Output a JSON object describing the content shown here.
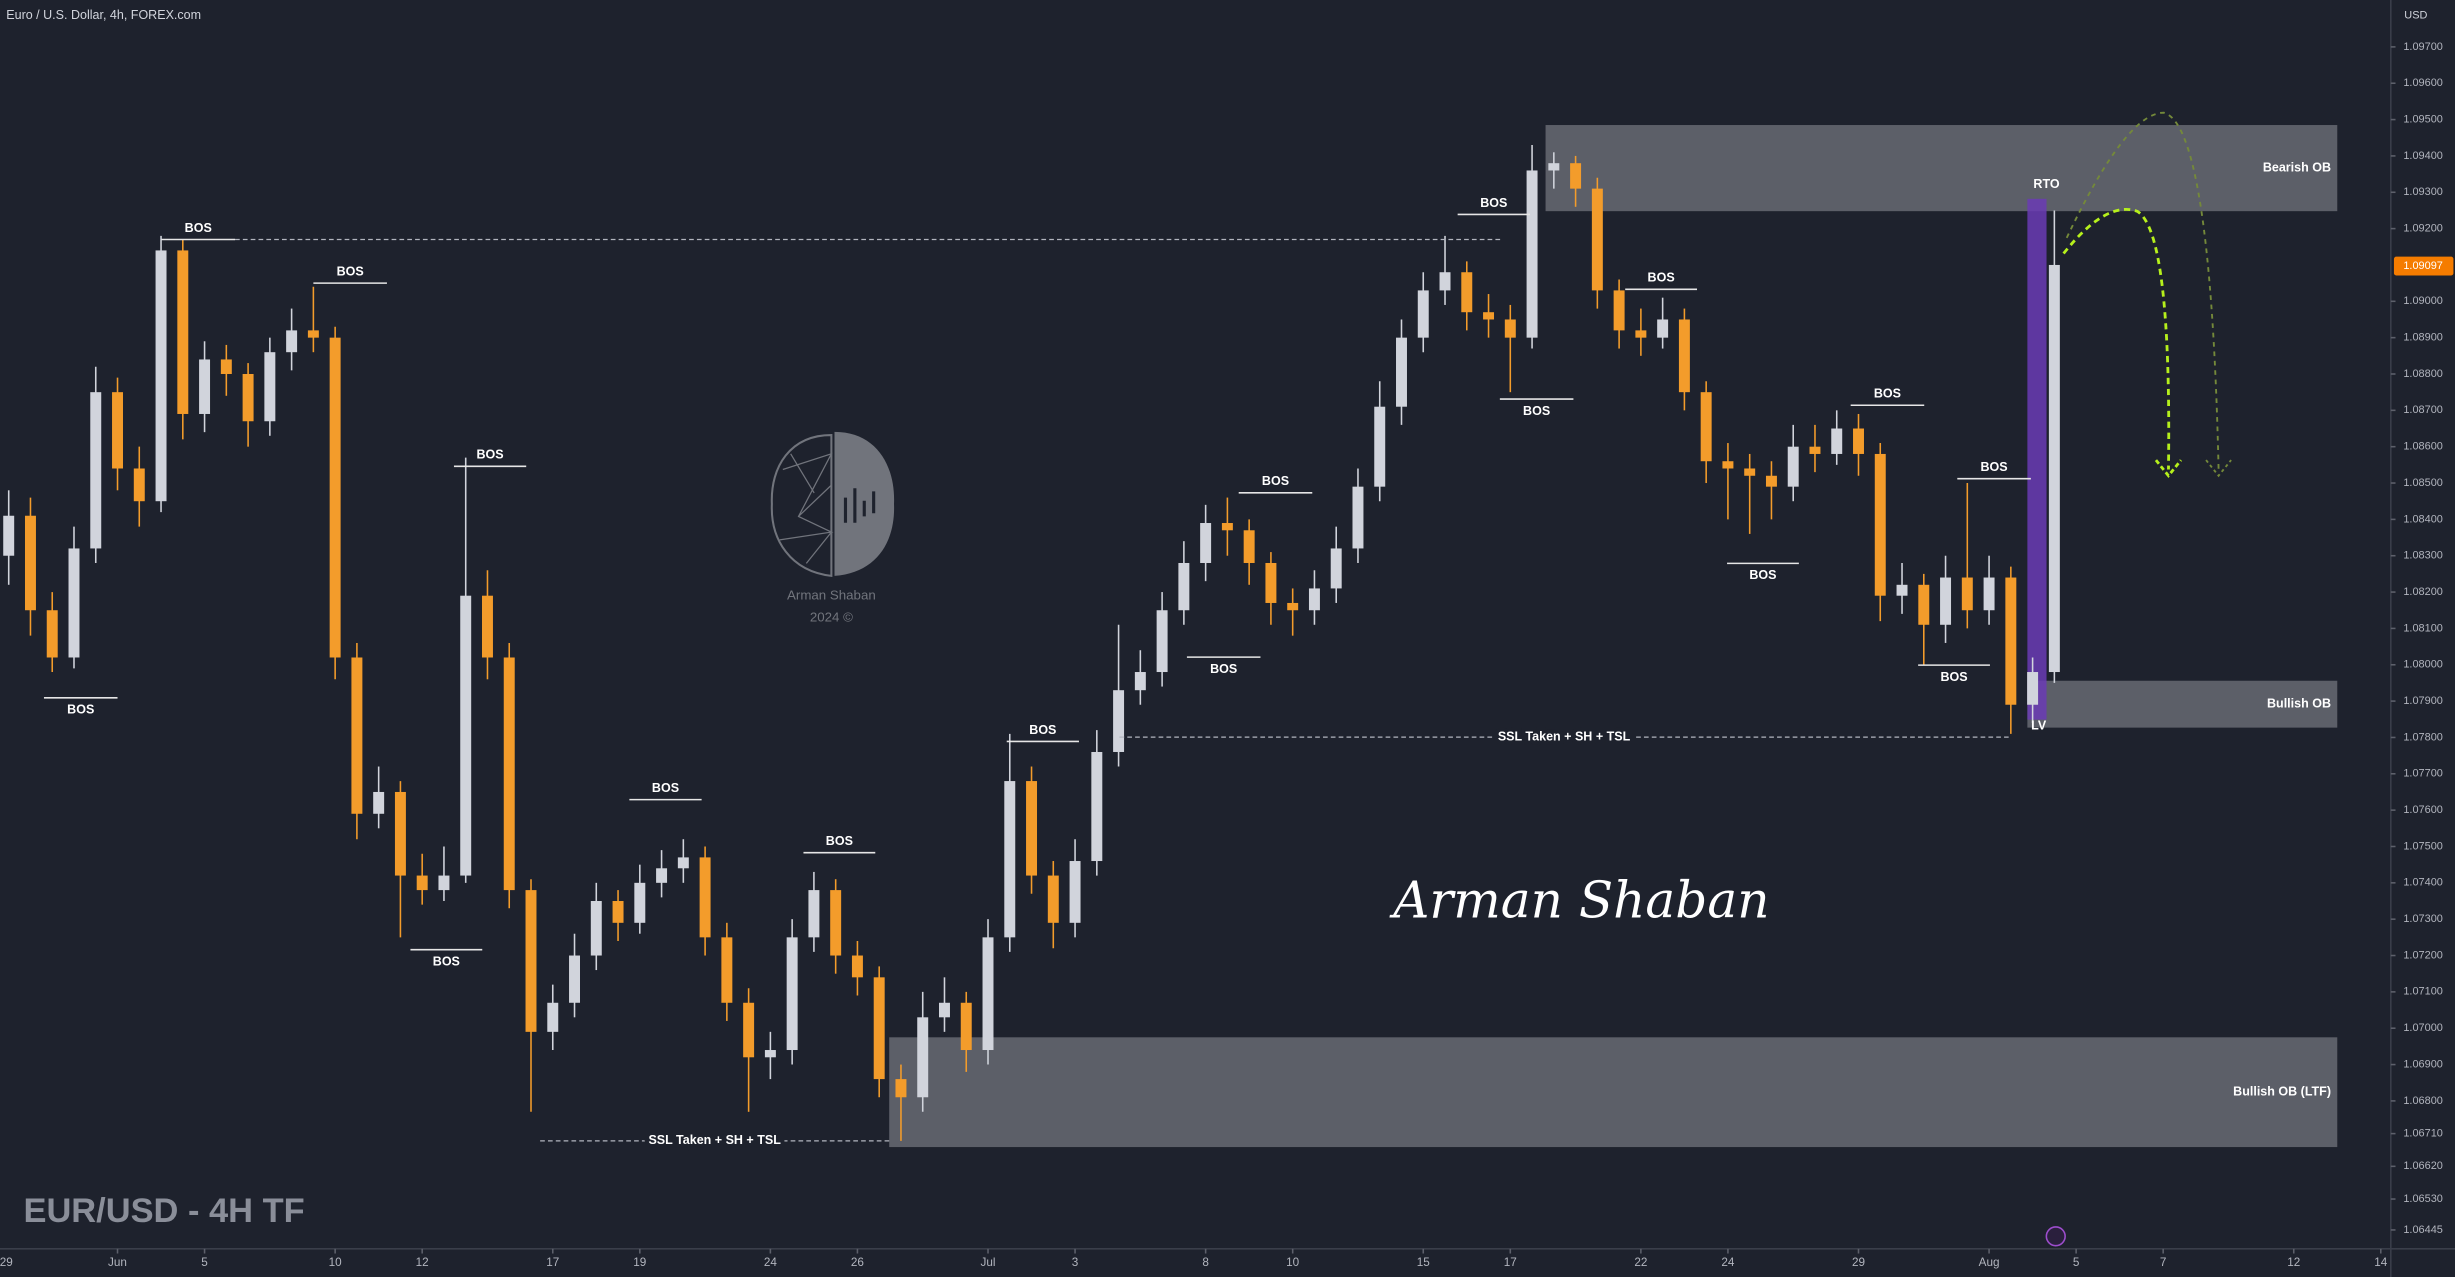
{
  "chart_data": {
    "type": "candlestick",
    "title": "Euro / U.S. Dollar, 4h, FOREX.com",
    "currency": "USD",
    "watermark": "EUR/USD - 4H TF",
    "signature": "Arman Shaban",
    "logo_name": "Arman Shaban",
    "logo_year": "2024 ©",
    "up_color": "#d1d4dc",
    "down_color": "#f39c2b",
    "zone_color": "#8f9199",
    "highlight_color": "#6a3bb5",
    "last_price": 1.09097,
    "xlim": [
      0.3,
      55.23
    ],
    "ylim": [
      1.06393,
      1.09829
    ],
    "xticks": [
      {
        "value": 0,
        "label": "29"
      },
      {
        "value": 3,
        "label": "Jun"
      },
      {
        "value": 5,
        "label": "5"
      },
      {
        "value": 8,
        "label": "10"
      },
      {
        "value": 10,
        "label": "12"
      },
      {
        "value": 13,
        "label": "17"
      },
      {
        "value": 15,
        "label": "19"
      },
      {
        "value": 18,
        "label": "24"
      },
      {
        "value": 20,
        "label": "26"
      },
      {
        "value": 23,
        "label": "Jul"
      },
      {
        "value": 25,
        "label": "3"
      },
      {
        "value": 28,
        "label": "8"
      },
      {
        "value": 30,
        "label": "10"
      },
      {
        "value": 33,
        "label": "15"
      },
      {
        "value": 35,
        "label": "17"
      },
      {
        "value": 38,
        "label": "22"
      },
      {
        "value": 40,
        "label": "24"
      },
      {
        "value": 43,
        "label": "29"
      },
      {
        "value": 46,
        "label": "Aug"
      },
      {
        "value": 48,
        "label": "5"
      },
      {
        "value": 50,
        "label": "7"
      },
      {
        "value": 53,
        "label": "12"
      },
      {
        "value": 55,
        "label": "14"
      }
    ],
    "yticks": [
      {
        "value": 1.097,
        "label": "1.09700"
      },
      {
        "value": 1.096,
        "label": "1.09600"
      },
      {
        "value": 1.095,
        "label": "1.09500"
      },
      {
        "value": 1.094,
        "label": "1.09400"
      },
      {
        "value": 1.093,
        "label": "1.09300"
      },
      {
        "value": 1.092,
        "label": "1.09200"
      },
      {
        "value": 1.09,
        "label": "1.09000"
      },
      {
        "value": 1.089,
        "label": "1.08900"
      },
      {
        "value": 1.088,
        "label": "1.08800"
      },
      {
        "value": 1.087,
        "label": "1.08700"
      },
      {
        "value": 1.086,
        "label": "1.08600"
      },
      {
        "value": 1.085,
        "label": "1.08500"
      },
      {
        "value": 1.084,
        "label": "1.08400"
      },
      {
        "value": 1.083,
        "label": "1.08300"
      },
      {
        "value": 1.082,
        "label": "1.08200"
      },
      {
        "value": 1.081,
        "label": "1.08100"
      },
      {
        "value": 1.08,
        "label": "1.08000"
      },
      {
        "value": 1.079,
        "label": "1.07900"
      },
      {
        "value": 1.078,
        "label": "1.07800"
      },
      {
        "value": 1.077,
        "label": "1.07700"
      },
      {
        "value": 1.076,
        "label": "1.07600"
      },
      {
        "value": 1.075,
        "label": "1.07500"
      },
      {
        "value": 1.074,
        "label": "1.07400"
      },
      {
        "value": 1.073,
        "label": "1.07300"
      },
      {
        "value": 1.072,
        "label": "1.07200"
      },
      {
        "value": 1.071,
        "label": "1.07100"
      },
      {
        "value": 1.07,
        "label": "1.07000"
      },
      {
        "value": 1.069,
        "label": "1.06900"
      },
      {
        "value": 1.068,
        "label": "1.06800"
      },
      {
        "value": 1.0671,
        "label": "1.06710"
      },
      {
        "value": 1.0662,
        "label": "1.06620"
      },
      {
        "value": 1.0653,
        "label": "1.06530"
      },
      {
        "value": 1.06445,
        "label": "1.06445"
      }
    ],
    "candles": [
      {
        "x": 0.5,
        "o": 1.083,
        "h": 1.0848,
        "l": 1.0822,
        "c": 1.0841
      },
      {
        "x": 1.0,
        "o": 1.0841,
        "h": 1.0846,
        "l": 1.0808,
        "c": 1.0815
      },
      {
        "x": 1.5,
        "o": 1.0815,
        "h": 1.082,
        "l": 1.0798,
        "c": 1.0802
      },
      {
        "x": 2.0,
        "o": 1.0802,
        "h": 1.0838,
        "l": 1.0799,
        "c": 1.0832
      },
      {
        "x": 2.5,
        "o": 1.0832,
        "h": 1.0882,
        "l": 1.0828,
        "c": 1.0875
      },
      {
        "x": 3.0,
        "o": 1.0875,
        "h": 1.0879,
        "l": 1.0848,
        "c": 1.0854
      },
      {
        "x": 3.5,
        "o": 1.0854,
        "h": 1.086,
        "l": 1.0838,
        "c": 1.0845
      },
      {
        "x": 4.0,
        "o": 1.0845,
        "h": 1.0918,
        "l": 1.0842,
        "c": 1.0914
      },
      {
        "x": 4.5,
        "o": 1.0914,
        "h": 1.0917,
        "l": 1.0862,
        "c": 1.0869
      },
      {
        "x": 5.0,
        "o": 1.0869,
        "h": 1.0889,
        "l": 1.0864,
        "c": 1.0884
      },
      {
        "x": 5.5,
        "o": 1.0884,
        "h": 1.0888,
        "l": 1.0874,
        "c": 1.088
      },
      {
        "x": 6.0,
        "o": 1.088,
        "h": 1.0883,
        "l": 1.086,
        "c": 1.0867
      },
      {
        "x": 6.5,
        "o": 1.0867,
        "h": 1.089,
        "l": 1.0863,
        "c": 1.0886
      },
      {
        "x": 7.0,
        "o": 1.0886,
        "h": 1.0898,
        "l": 1.0881,
        "c": 1.0892
      },
      {
        "x": 7.5,
        "o": 1.0892,
        "h": 1.0904,
        "l": 1.0886,
        "c": 1.089
      },
      {
        "x": 8.0,
        "o": 1.089,
        "h": 1.0893,
        "l": 1.0796,
        "c": 1.0802
      },
      {
        "x": 8.5,
        "o": 1.0802,
        "h": 1.0806,
        "l": 1.0752,
        "c": 1.0759
      },
      {
        "x": 9.0,
        "o": 1.0759,
        "h": 1.0772,
        "l": 1.0755,
        "c": 1.0765
      },
      {
        "x": 9.5,
        "o": 1.0765,
        "h": 1.0768,
        "l": 1.0725,
        "c": 1.0742
      },
      {
        "x": 10.0,
        "o": 1.0742,
        "h": 1.0748,
        "l": 1.0734,
        "c": 1.0738
      },
      {
        "x": 10.5,
        "o": 1.0738,
        "h": 1.075,
        "l": 1.0735,
        "c": 1.0742
      },
      {
        "x": 11.0,
        "o": 1.0742,
        "h": 1.0857,
        "l": 1.074,
        "c": 1.0819
      },
      {
        "x": 11.5,
        "o": 1.0819,
        "h": 1.0826,
        "l": 1.0796,
        "c": 1.0802
      },
      {
        "x": 12.0,
        "o": 1.0802,
        "h": 1.0806,
        "l": 1.0733,
        "c": 1.0738
      },
      {
        "x": 12.5,
        "o": 1.0738,
        "h": 1.0741,
        "l": 1.0677,
        "c": 1.0699
      },
      {
        "x": 13.0,
        "o": 1.0699,
        "h": 1.0712,
        "l": 1.0694,
        "c": 1.0707
      },
      {
        "x": 13.5,
        "o": 1.0707,
        "h": 1.0726,
        "l": 1.0703,
        "c": 1.072
      },
      {
        "x": 14.0,
        "o": 1.072,
        "h": 1.074,
        "l": 1.0716,
        "c": 1.0735
      },
      {
        "x": 14.5,
        "o": 1.0735,
        "h": 1.0738,
        "l": 1.0724,
        "c": 1.0729
      },
      {
        "x": 15.0,
        "o": 1.0729,
        "h": 1.0745,
        "l": 1.0726,
        "c": 1.074
      },
      {
        "x": 15.5,
        "o": 1.074,
        "h": 1.0749,
        "l": 1.0736,
        "c": 1.0744
      },
      {
        "x": 16.0,
        "o": 1.0744,
        "h": 1.0752,
        "l": 1.074,
        "c": 1.0747
      },
      {
        "x": 16.5,
        "o": 1.0747,
        "h": 1.075,
        "l": 1.072,
        "c": 1.0725
      },
      {
        "x": 17.0,
        "o": 1.0725,
        "h": 1.0729,
        "l": 1.0702,
        "c": 1.0707
      },
      {
        "x": 17.5,
        "o": 1.0707,
        "h": 1.0711,
        "l": 1.0677,
        "c": 1.0692
      },
      {
        "x": 18.0,
        "o": 1.0692,
        "h": 1.0699,
        "l": 1.0686,
        "c": 1.0694
      },
      {
        "x": 18.5,
        "o": 1.0694,
        "h": 1.073,
        "l": 1.069,
        "c": 1.0725
      },
      {
        "x": 19.0,
        "o": 1.0725,
        "h": 1.0743,
        "l": 1.0721,
        "c": 1.0738
      },
      {
        "x": 19.5,
        "o": 1.0738,
        "h": 1.0741,
        "l": 1.0715,
        "c": 1.072
      },
      {
        "x": 20.0,
        "o": 1.072,
        "h": 1.0724,
        "l": 1.0709,
        "c": 1.0714
      },
      {
        "x": 20.5,
        "o": 1.0714,
        "h": 1.0717,
        "l": 1.0681,
        "c": 1.0686
      },
      {
        "x": 21.0,
        "o": 1.0686,
        "h": 1.069,
        "l": 1.0669,
        "c": 1.0681
      },
      {
        "x": 21.5,
        "o": 1.0681,
        "h": 1.071,
        "l": 1.0677,
        "c": 1.0703
      },
      {
        "x": 22.0,
        "o": 1.0703,
        "h": 1.0714,
        "l": 1.0699,
        "c": 1.0707
      },
      {
        "x": 22.5,
        "o": 1.0707,
        "h": 1.071,
        "l": 1.0688,
        "c": 1.0694
      },
      {
        "x": 23.0,
        "o": 1.0694,
        "h": 1.073,
        "l": 1.069,
        "c": 1.0725
      },
      {
        "x": 23.5,
        "o": 1.0725,
        "h": 1.0781,
        "l": 1.0721,
        "c": 1.0768
      },
      {
        "x": 24.0,
        "o": 1.0768,
        "h": 1.0772,
        "l": 1.0737,
        "c": 1.0742
      },
      {
        "x": 24.5,
        "o": 1.0742,
        "h": 1.0746,
        "l": 1.0722,
        "c": 1.0729
      },
      {
        "x": 25.0,
        "o": 1.0729,
        "h": 1.0752,
        "l": 1.0725,
        "c": 1.0746
      },
      {
        "x": 25.5,
        "o": 1.0746,
        "h": 1.0782,
        "l": 1.0742,
        "c": 1.0776
      },
      {
        "x": 26.0,
        "o": 1.0776,
        "h": 1.0811,
        "l": 1.0772,
        "c": 1.0793
      },
      {
        "x": 26.5,
        "o": 1.0793,
        "h": 1.0804,
        "l": 1.0789,
        "c": 1.0798
      },
      {
        "x": 27.0,
        "o": 1.0798,
        "h": 1.082,
        "l": 1.0794,
        "c": 1.0815
      },
      {
        "x": 27.5,
        "o": 1.0815,
        "h": 1.0834,
        "l": 1.0811,
        "c": 1.0828
      },
      {
        "x": 28.0,
        "o": 1.0828,
        "h": 1.0844,
        "l": 1.0823,
        "c": 1.0839
      },
      {
        "x": 28.5,
        "o": 1.0839,
        "h": 1.0846,
        "l": 1.083,
        "c": 1.0837
      },
      {
        "x": 29.0,
        "o": 1.0837,
        "h": 1.084,
        "l": 1.0822,
        "c": 1.0828
      },
      {
        "x": 29.5,
        "o": 1.0828,
        "h": 1.0831,
        "l": 1.0811,
        "c": 1.0817
      },
      {
        "x": 30.0,
        "o": 1.0817,
        "h": 1.0821,
        "l": 1.0808,
        "c": 1.0815
      },
      {
        "x": 30.5,
        "o": 1.0815,
        "h": 1.0826,
        "l": 1.0811,
        "c": 1.0821
      },
      {
        "x": 31.0,
        "o": 1.0821,
        "h": 1.0838,
        "l": 1.0817,
        "c": 1.0832
      },
      {
        "x": 31.5,
        "o": 1.0832,
        "h": 1.0854,
        "l": 1.0828,
        "c": 1.0849
      },
      {
        "x": 32.0,
        "o": 1.0849,
        "h": 1.0878,
        "l": 1.0845,
        "c": 1.0871
      },
      {
        "x": 32.5,
        "o": 1.0871,
        "h": 1.0895,
        "l": 1.0866,
        "c": 1.089
      },
      {
        "x": 33.0,
        "o": 1.089,
        "h": 1.0908,
        "l": 1.0886,
        "c": 1.0903
      },
      {
        "x": 33.5,
        "o": 1.0903,
        "h": 1.0918,
        "l": 1.0899,
        "c": 1.0908
      },
      {
        "x": 34.0,
        "o": 1.0908,
        "h": 1.0911,
        "l": 1.0892,
        "c": 1.0897
      },
      {
        "x": 34.5,
        "o": 1.0897,
        "h": 1.0902,
        "l": 1.089,
        "c": 1.0895
      },
      {
        "x": 35.0,
        "o": 1.0895,
        "h": 1.0899,
        "l": 1.0875,
        "c": 1.089
      },
      {
        "x": 35.5,
        "o": 1.089,
        "h": 1.0943,
        "l": 1.0887,
        "c": 1.0936
      },
      {
        "x": 36.0,
        "o": 1.0936,
        "h": 1.0941,
        "l": 1.0931,
        "c": 1.0938
      },
      {
        "x": 36.5,
        "o": 1.0938,
        "h": 1.094,
        "l": 1.0926,
        "c": 1.0931
      },
      {
        "x": 37.0,
        "o": 1.0931,
        "h": 1.0934,
        "l": 1.0898,
        "c": 1.0903
      },
      {
        "x": 37.5,
        "o": 1.0903,
        "h": 1.0906,
        "l": 1.0887,
        "c": 1.0892
      },
      {
        "x": 38.0,
        "o": 1.0892,
        "h": 1.0898,
        "l": 1.0885,
        "c": 1.089
      },
      {
        "x": 38.5,
        "o": 1.089,
        "h": 1.0901,
        "l": 1.0887,
        "c": 1.0895
      },
      {
        "x": 39.0,
        "o": 1.0895,
        "h": 1.0898,
        "l": 1.087,
        "c": 1.0875
      },
      {
        "x": 39.5,
        "o": 1.0875,
        "h": 1.0878,
        "l": 1.085,
        "c": 1.0856
      },
      {
        "x": 40.0,
        "o": 1.0856,
        "h": 1.0861,
        "l": 1.084,
        "c": 1.0854
      },
      {
        "x": 40.5,
        "o": 1.0854,
        "h": 1.0858,
        "l": 1.0836,
        "c": 1.0852
      },
      {
        "x": 41.0,
        "o": 1.0852,
        "h": 1.0856,
        "l": 1.084,
        "c": 1.0849
      },
      {
        "x": 41.5,
        "o": 1.0849,
        "h": 1.0866,
        "l": 1.0845,
        "c": 1.086
      },
      {
        "x": 42.0,
        "o": 1.086,
        "h": 1.0866,
        "l": 1.0853,
        "c": 1.0858
      },
      {
        "x": 42.5,
        "o": 1.0858,
        "h": 1.087,
        "l": 1.0855,
        "c": 1.0865
      },
      {
        "x": 43.0,
        "o": 1.0865,
        "h": 1.0869,
        "l": 1.0852,
        "c": 1.0858
      },
      {
        "x": 43.5,
        "o": 1.0858,
        "h": 1.0861,
        "l": 1.0812,
        "c": 1.0819
      },
      {
        "x": 44.0,
        "o": 1.0819,
        "h": 1.0828,
        "l": 1.0814,
        "c": 1.0822
      },
      {
        "x": 44.5,
        "o": 1.0822,
        "h": 1.0825,
        "l": 1.08,
        "c": 1.0811
      },
      {
        "x": 45.0,
        "o": 1.0811,
        "h": 1.083,
        "l": 1.0806,
        "c": 1.0824
      },
      {
        "x": 45.5,
        "o": 1.0824,
        "h": 1.085,
        "l": 1.081,
        "c": 1.0815
      },
      {
        "x": 46.0,
        "o": 1.0815,
        "h": 1.083,
        "l": 1.0811,
        "c": 1.0824
      },
      {
        "x": 46.5,
        "o": 1.0824,
        "h": 1.0827,
        "l": 1.0781,
        "c": 1.0789
      },
      {
        "x": 47.0,
        "o": 1.0789,
        "h": 1.0802,
        "l": 1.0784,
        "c": 1.0798
      },
      {
        "x": 47.5,
        "o": 1.0798,
        "h": 1.0925,
        "l": 1.0795,
        "c": 1.091
      }
    ],
    "zones": [
      {
        "label": "Bearish OB",
        "top": 1.09485,
        "bottom": 1.09248,
        "x_start": 35.81,
        "x_end": 54.0
      },
      {
        "label": "Bullish OB",
        "top": 1.07956,
        "bottom": 1.07827,
        "x_start": 46.88,
        "x_end": 54.0
      },
      {
        "label": "Bullish OB (LTF)",
        "top": 1.06975,
        "bottom": 1.06673,
        "x_start": 20.73,
        "x_end": 54.0
      }
    ],
    "highlight": {
      "top": 1.09282,
      "bottom": 1.07849,
      "x_start": 46.88,
      "x_end": 47.32
    },
    "bos_highs": [
      {
        "label": "BOS",
        "price": 1.0917,
        "x_start": 4.01,
        "x_end": 5.7
      },
      {
        "label": "BOS",
        "price": 1.0905,
        "x_start": 7.5,
        "x_end": 9.19
      },
      {
        "label": "BOS",
        "price": 1.08546,
        "x_start": 10.73,
        "x_end": 12.39
      },
      {
        "label": "BOS",
        "price": 1.07629,
        "x_start": 14.76,
        "x_end": 16.42
      },
      {
        "label": "BOS",
        "price": 1.07483,
        "x_start": 18.76,
        "x_end": 20.41
      },
      {
        "label": "BOS",
        "price": 1.07789,
        "x_start": 23.43,
        "x_end": 25.09
      },
      {
        "label": "BOS",
        "price": 1.08473,
        "x_start": 28.76,
        "x_end": 30.45
      },
      {
        "label": "BOS",
        "price": 1.09239,
        "x_start": 33.79,
        "x_end": 35.45
      },
      {
        "label": "BOS",
        "price": 1.09033,
        "x_start": 37.64,
        "x_end": 39.29
      },
      {
        "label": "BOS",
        "price": 1.08714,
        "x_start": 42.82,
        "x_end": 44.51
      },
      {
        "label": "BOS",
        "price": 1.08512,
        "x_start": 45.27,
        "x_end": 46.96
      }
    ],
    "bos_lows": [
      {
        "label": "BOS",
        "price": 1.07909,
        "x_start": 1.31,
        "x_end": 3.0
      },
      {
        "label": "BOS",
        "price": 1.07216,
        "x_start": 9.73,
        "x_end": 11.38
      },
      {
        "label": "BOS",
        "price": 1.08021,
        "x_start": 27.57,
        "x_end": 29.26
      },
      {
        "label": "BOS",
        "price": 1.08731,
        "x_start": 34.76,
        "x_end": 36.45
      },
      {
        "label": "BOS",
        "price": 1.08279,
        "x_start": 39.98,
        "x_end": 41.63
      },
      {
        "label": "BOS",
        "price": 1.07999,
        "x_start": 44.37,
        "x_end": 46.02
      }
    ],
    "dashed_levels": [
      {
        "price": 1.0917,
        "x_start": 5.7,
        "x_end": 34.83
      },
      {
        "label": "SSL Taken + SH + TSL",
        "price": 1.07801,
        "x_start": 26.02,
        "x_end": 46.45
      },
      {
        "label": "SSL Taken + SH + TSL",
        "price": 1.0669,
        "x_start": 12.71,
        "x_end": 20.73
      }
    ],
    "markers": [
      {
        "label": "RTO",
        "x": 47.32,
        "price": 1.09321
      },
      {
        "label": "LV",
        "x": 47.14,
        "price": 1.07831
      }
    ]
  }
}
